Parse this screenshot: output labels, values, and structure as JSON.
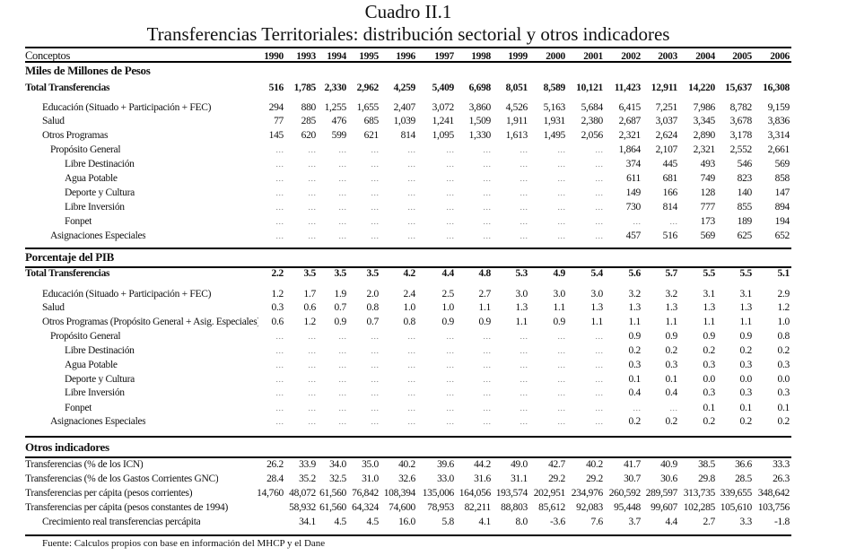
{
  "title": "Cuadro II.1",
  "subtitle": "Transferencias Territoriales: distribución sectorial y otros indicadores",
  "header": {
    "concept_label": "Conceptos",
    "years": [
      "1990",
      "1993",
      "1994",
      "1995",
      "1996",
      "1997",
      "1998",
      "1999",
      "2000",
      "2001",
      "2002",
      "2003",
      "2004",
      "2005",
      "2006"
    ]
  },
  "sections": [
    {
      "title": "Miles de Millones de Pesos",
      "rows": [
        {
          "label": "Total Transferencias",
          "indent": 0,
          "bold": true,
          "values": [
            "516",
            "1,785",
            "2,330",
            "2,962",
            "4,259",
            "5,409",
            "6,698",
            "8,051",
            "8,589",
            "10,121",
            "11,423",
            "12,911",
            "14,220",
            "15,637",
            "16,308"
          ]
        },
        {
          "label": "Educación (Situado + Participación + FEC)",
          "indent": 1,
          "values": [
            "294",
            "880",
            "1,255",
            "1,655",
            "2,407",
            "3,072",
            "3,860",
            "4,526",
            "5,163",
            "5,684",
            "6,415",
            "7,251",
            "7,986",
            "8,782",
            "9,159"
          ]
        },
        {
          "label": "Salud",
          "indent": 1,
          "values": [
            "77",
            "285",
            "476",
            "685",
            "1,039",
            "1,241",
            "1,509",
            "1,911",
            "1,931",
            "2,380",
            "2,687",
            "3,037",
            "3,345",
            "3,678",
            "3,836"
          ]
        },
        {
          "label": "Otros Programas",
          "indent": 1,
          "values": [
            "145",
            "620",
            "599",
            "621",
            "814",
            "1,095",
            "1,330",
            "1,613",
            "1,495",
            "2,056",
            "2,321",
            "2,624",
            "2,890",
            "3,178",
            "3,314"
          ]
        },
        {
          "label": "Propósito General",
          "indent": 2,
          "values": [
            "...",
            "...",
            "...",
            "...",
            "...",
            "...",
            "...",
            "...",
            "...",
            "...",
            "1,864",
            "2,107",
            "2,321",
            "2,552",
            "2,661"
          ]
        },
        {
          "label": "Libre Destinación",
          "indent": 3,
          "values": [
            "...",
            "...",
            "...",
            "...",
            "...",
            "...",
            "...",
            "...",
            "...",
            "...",
            "374",
            "445",
            "493",
            "546",
            "569"
          ]
        },
        {
          "label": "Agua Potable",
          "indent": 3,
          "values": [
            "...",
            "...",
            "...",
            "...",
            "...",
            "...",
            "...",
            "...",
            "...",
            "...",
            "611",
            "681",
            "749",
            "823",
            "858"
          ]
        },
        {
          "label": "Deporte y Cultura",
          "indent": 3,
          "values": [
            "...",
            "...",
            "...",
            "...",
            "...",
            "...",
            "...",
            "...",
            "...",
            "...",
            "149",
            "166",
            "128",
            "140",
            "147"
          ]
        },
        {
          "label": "Libre Inversión",
          "indent": 3,
          "values": [
            "...",
            "...",
            "...",
            "...",
            "...",
            "...",
            "...",
            "...",
            "...",
            "...",
            "730",
            "814",
            "777",
            "855",
            "894"
          ]
        },
        {
          "label": "Fonpet",
          "indent": 3,
          "values": [
            "...",
            "...",
            "...",
            "...",
            "...",
            "...",
            "...",
            "...",
            "...",
            "...",
            "...",
            "...",
            "173",
            "189",
            "194"
          ]
        },
        {
          "label": "Asignaciones Especiales",
          "indent": 2,
          "values": [
            "...",
            "...",
            "...",
            "...",
            "...",
            "...",
            "...",
            "...",
            "...",
            "...",
            "457",
            "516",
            "569",
            "625",
            "652"
          ]
        }
      ]
    },
    {
      "title": "Porcentaje del PIB",
      "rows": [
        {
          "label": "Total Transferencias",
          "indent": 0,
          "bold": true,
          "values": [
            "2.2",
            "3.5",
            "3.5",
            "3.5",
            "4.2",
            "4.4",
            "4.8",
            "5.3",
            "4.9",
            "5.4",
            "5.6",
            "5.7",
            "5.5",
            "5.5",
            "5.1"
          ]
        },
        {
          "label": "Educación (Situado + Participación + FEC)",
          "indent": 1,
          "values": [
            "1.2",
            "1.7",
            "1.9",
            "2.0",
            "2.4",
            "2.5",
            "2.7",
            "3.0",
            "3.0",
            "3.0",
            "3.2",
            "3.2",
            "3.1",
            "3.1",
            "2.9"
          ]
        },
        {
          "label": "Salud",
          "indent": 1,
          "values": [
            "0.3",
            "0.6",
            "0.7",
            "0.8",
            "1.0",
            "1.0",
            "1.1",
            "1.3",
            "1.1",
            "1.3",
            "1.3",
            "1.3",
            "1.3",
            "1.3",
            "1.2"
          ]
        },
        {
          "label": "Otros Programas (Propósito General + Asig. Especiales)",
          "indent": 1,
          "values": [
            "0.6",
            "1.2",
            "0.9",
            "0.7",
            "0.8",
            "0.9",
            "0.9",
            "1.1",
            "0.9",
            "1.1",
            "1.1",
            "1.1",
            "1.1",
            "1.1",
            "1.0"
          ]
        },
        {
          "label": "Propósito General",
          "indent": 2,
          "values": [
            "...",
            "...",
            "...",
            "...",
            "...",
            "...",
            "...",
            "...",
            "...",
            "...",
            "0.9",
            "0.9",
            "0.9",
            "0.9",
            "0.8"
          ]
        },
        {
          "label": "Libre Destinación",
          "indent": 3,
          "values": [
            "...",
            "...",
            "...",
            "...",
            "...",
            "...",
            "...",
            "...",
            "...",
            "...",
            "0.2",
            "0.2",
            "0.2",
            "0.2",
            "0.2"
          ]
        },
        {
          "label": "Agua Potable",
          "indent": 3,
          "values": [
            "...",
            "...",
            "...",
            "...",
            "...",
            "...",
            "...",
            "...",
            "...",
            "...",
            "0.3",
            "0.3",
            "0.3",
            "0.3",
            "0.3"
          ]
        },
        {
          "label": "Deporte y Cultura",
          "indent": 3,
          "values": [
            "...",
            "...",
            "...",
            "...",
            "...",
            "...",
            "...",
            "...",
            "...",
            "...",
            "0.1",
            "0.1",
            "0.0",
            "0.0",
            "0.0"
          ]
        },
        {
          "label": "Libre Inversión",
          "indent": 3,
          "values": [
            "...",
            "...",
            "...",
            "...",
            "...",
            "...",
            "...",
            "...",
            "...",
            "...",
            "0.4",
            "0.4",
            "0.3",
            "0.3",
            "0.3"
          ]
        },
        {
          "label": "Fonpet",
          "indent": 3,
          "values": [
            "...",
            "...",
            "...",
            "...",
            "...",
            "...",
            "...",
            "...",
            "...",
            "...",
            "...",
            "...",
            "0.1",
            "0.1",
            "0.1"
          ]
        },
        {
          "label": "Asignaciones Especiales",
          "indent": 2,
          "values": [
            "...",
            "...",
            "...",
            "...",
            "...",
            "...",
            "...",
            "...",
            "...",
            "...",
            "0.2",
            "0.2",
            "0.2",
            "0.2",
            "0.2"
          ]
        }
      ]
    },
    {
      "title": "Otros indicadores",
      "rows": [
        {
          "label": "Transferencias (% de los ICN)",
          "indent": 0,
          "values": [
            "26.2",
            "33.9",
            "34.0",
            "35.0",
            "40.2",
            "39.6",
            "44.2",
            "49.0",
            "42.7",
            "40.2",
            "41.7",
            "40.9",
            "38.5",
            "36.6",
            "33.3"
          ]
        },
        {
          "label": "Transferencias (% de los Gastos Corrientes GNC)",
          "indent": 0,
          "values": [
            "28.4",
            "35.2",
            "32.5",
            "31.0",
            "32.6",
            "33.0",
            "31.6",
            "31.1",
            "29.2",
            "29.2",
            "30.7",
            "30.6",
            "29.8",
            "28.5",
            "26.3"
          ]
        },
        {
          "label": "Transferencias per cápita (pesos corrientes)",
          "indent": 0,
          "values": [
            "14,760",
            "48,072",
            "61,560",
            "76,842",
            "108,394",
            "135,006",
            "164,056",
            "193,574",
            "202,951",
            "234,976",
            "260,592",
            "289,597",
            "313,735",
            "339,655",
            "348,642"
          ]
        },
        {
          "label": "Transferencias per cápita (pesos constantes de 1994)",
          "indent": 0,
          "values": [
            "",
            "58,932",
            "61,560",
            "64,324",
            "74,600",
            "78,953",
            "82,211",
            "88,803",
            "85,612",
            "92,083",
            "95,448",
            "99,607",
            "102,285",
            "105,610",
            "103,756"
          ]
        },
        {
          "label": "Crecimiento real transferencias percápita",
          "indent": 1,
          "values": [
            "",
            "34.1",
            "4.5",
            "4.5",
            "16.0",
            "5.8",
            "4.1",
            "8.0",
            "-3.6",
            "7.6",
            "3.7",
            "4.4",
            "2.7",
            "3.3",
            "-1.8"
          ]
        }
      ]
    }
  ],
  "footnote": "Fuente: Calculos propios con base en información del MHCP y el Dane"
}
